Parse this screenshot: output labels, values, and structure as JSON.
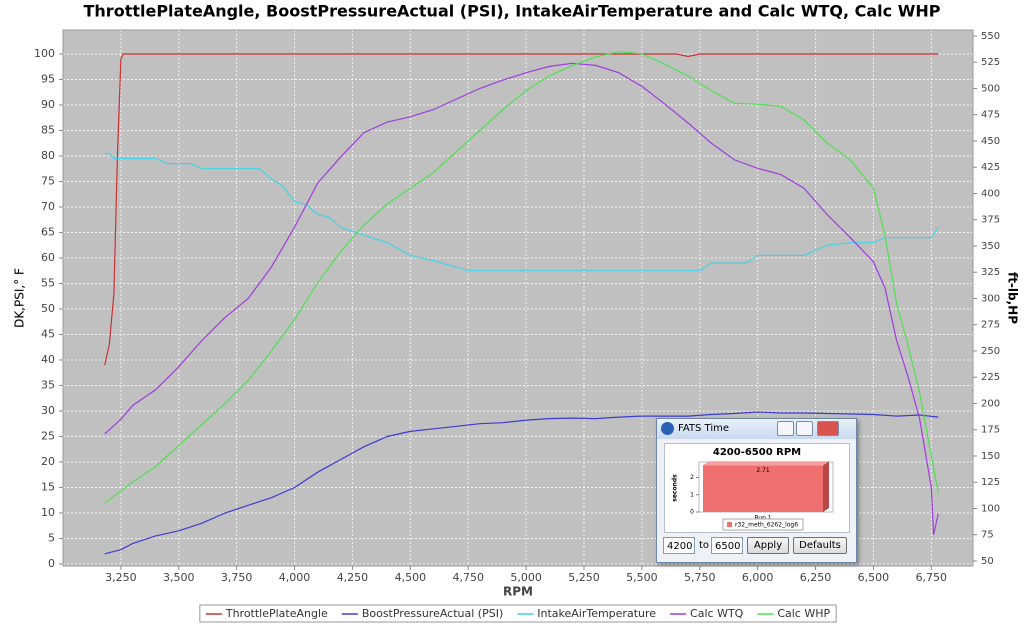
{
  "chart_data": [
    {
      "type": "line",
      "title": "ThrottlePlateAngle, BoostPressureActual (PSI), IntakeAirTemperature and Calc WTQ, Calc WHP",
      "x_label": "RPM",
      "y_label": "DK,PSI,° F",
      "y2_label": "ft-lb,HP",
      "xlim": [
        3000,
        6930
      ],
      "xticks": [
        {
          "value": 3250,
          "label": "3,250"
        },
        {
          "value": 3500,
          "label": "3,500"
        },
        {
          "value": 3750,
          "label": "3,750"
        },
        {
          "value": 4000,
          "label": "4,000"
        },
        {
          "value": 4250,
          "label": "4,250"
        },
        {
          "value": 4500,
          "label": "4,500"
        },
        {
          "value": 4750,
          "label": "4,750"
        },
        {
          "value": 5000,
          "label": "5,000"
        },
        {
          "value": 5250,
          "label": "5,250"
        },
        {
          "value": 5500,
          "label": "5,500"
        },
        {
          "value": 5750,
          "label": "5,750"
        },
        {
          "value": 6000,
          "label": "6,000"
        },
        {
          "value": 6250,
          "label": "6,250"
        },
        {
          "value": 6500,
          "label": "6,500"
        },
        {
          "value": 6750,
          "label": "6,750"
        }
      ],
      "ylim": [
        -0.4,
        104.7
      ],
      "yticks": [
        0,
        5,
        10,
        15,
        20,
        25,
        30,
        35,
        40,
        45,
        50,
        55,
        60,
        65,
        70,
        75,
        80,
        85,
        90,
        95,
        100
      ],
      "y2lim": [
        45.2,
        555.7
      ],
      "y2ticks": [
        50,
        75,
        100,
        125,
        150,
        175,
        200,
        225,
        250,
        275,
        300,
        325,
        350,
        375,
        400,
        425,
        450,
        475,
        500,
        525,
        550
      ],
      "grid": true,
      "legend": "bottom",
      "series": [
        {
          "name": "ThrottlePlateAngle",
          "color": "#c83232",
          "x": [
            3180,
            3200,
            3220,
            3235,
            3250,
            3260,
            5650,
            5700,
            5750,
            6780
          ],
          "values": [
            39,
            43,
            53,
            80,
            99,
            100,
            100,
            99.5,
            100,
            100
          ]
        },
        {
          "name": "BoostPressureActual (PSI)",
          "color": "#3c3cd0",
          "x": [
            3180,
            3250,
            3300,
            3400,
            3500,
            3600,
            3700,
            3800,
            3900,
            4000,
            4100,
            4200,
            4300,
            4400,
            4500,
            4600,
            4700,
            4800,
            4900,
            5000,
            5100,
            5200,
            5300,
            5400,
            5500,
            5600,
            5700,
            5800,
            5900,
            6000,
            6100,
            6200,
            6300,
            6400,
            6500,
            6600,
            6700,
            6780
          ],
          "values": [
            2,
            2.8,
            4,
            5.5,
            6.5,
            8,
            10,
            11.5,
            13,
            15,
            18,
            20.5,
            23,
            25,
            26,
            26.5,
            27,
            27.5,
            27.7,
            28.2,
            28.5,
            28.6,
            28.5,
            28.8,
            29,
            29,
            29,
            29.3,
            29.5,
            29.8,
            29.6,
            29.6,
            29.5,
            29.4,
            29.3,
            29,
            29.2,
            28.8
          ]
        },
        {
          "name": "IntakeAirTemperature",
          "color": "#46d2e6",
          "x": [
            3180,
            3200,
            3220,
            3300,
            3400,
            3450,
            3550,
            3600,
            3850,
            3900,
            3950,
            4000,
            4050,
            4100,
            4150,
            4200,
            4300,
            4400,
            4500,
            4600,
            4750,
            5000,
            5750,
            5800,
            5950,
            6000,
            6200,
            6250,
            6300,
            6400,
            6500,
            6550,
            6750,
            6780
          ],
          "values": [
            80.5,
            80.5,
            79.5,
            79.5,
            79.5,
            78.5,
            78.5,
            77.5,
            77.5,
            75.5,
            74,
            71,
            70.5,
            68.5,
            68,
            66,
            64.5,
            63,
            60.5,
            59.5,
            57.5,
            57.5,
            57.5,
            59,
            59,
            60.5,
            60.5,
            61.5,
            62.5,
            63,
            63,
            64,
            64,
            66
          ]
        },
        {
          "name": "Calc WTQ",
          "color": "#a03cdc",
          "axis": "y2",
          "x": [
            3180,
            3250,
            3300,
            3400,
            3500,
            3600,
            3700,
            3800,
            3900,
            4000,
            4100,
            4200,
            4300,
            4400,
            4500,
            4600,
            4700,
            4800,
            4900,
            5000,
            5100,
            5200,
            5300,
            5400,
            5500,
            5600,
            5700,
            5800,
            5900,
            6000,
            6100,
            6200,
            6300,
            6400,
            6500,
            6550,
            6600,
            6650,
            6700,
            6750,
            6760,
            6780
          ],
          "values": [
            171,
            185,
            198,
            213,
            235,
            260,
            282,
            300,
            330,
            368,
            410,
            435,
            458,
            468,
            473,
            480,
            490,
            500,
            508,
            515,
            521,
            524,
            522,
            515,
            502,
            485,
            467,
            448,
            432,
            424,
            418,
            405,
            380,
            358,
            335,
            310,
            260,
            225,
            185,
            120,
            75,
            95
          ]
        },
        {
          "name": "Calc WHP",
          "color": "#50e050",
          "axis": "y2",
          "x": [
            3180,
            3300,
            3400,
            3500,
            3600,
            3700,
            3800,
            3900,
            4000,
            4100,
            4200,
            4300,
            4400,
            4500,
            4600,
            4700,
            4800,
            4900,
            5000,
            5100,
            5200,
            5300,
            5400,
            5500,
            5600,
            5700,
            5800,
            5900,
            6000,
            6100,
            6200,
            6300,
            6400,
            6500,
            6550,
            6600,
            6650,
            6700,
            6750,
            6780
          ],
          "values": [
            105,
            125,
            140,
            160,
            180,
            200,
            222,
            250,
            280,
            315,
            345,
            370,
            390,
            405,
            420,
            440,
            460,
            480,
            498,
            512,
            522,
            530,
            535,
            533,
            523,
            512,
            498,
            486,
            485,
            483,
            470,
            448,
            432,
            405,
            360,
            295,
            255,
            210,
            150,
            115
          ]
        }
      ]
    },
    {
      "type": "bar",
      "title": "4200-6500 RPM",
      "y_label": "seconds",
      "categories": [
        "Run 1"
      ],
      "values": [
        2.71
      ],
      "color": "#f07070",
      "legend_label": "r32_meth_6262_log6",
      "ylim": [
        0,
        2.9
      ],
      "yticks": [
        0,
        1,
        2
      ]
    }
  ],
  "dialog": {
    "title": "FATS Time",
    "from": "4200",
    "to_label": "to",
    "to": "6500",
    "apply": "Apply",
    "defaults": "Defaults"
  }
}
